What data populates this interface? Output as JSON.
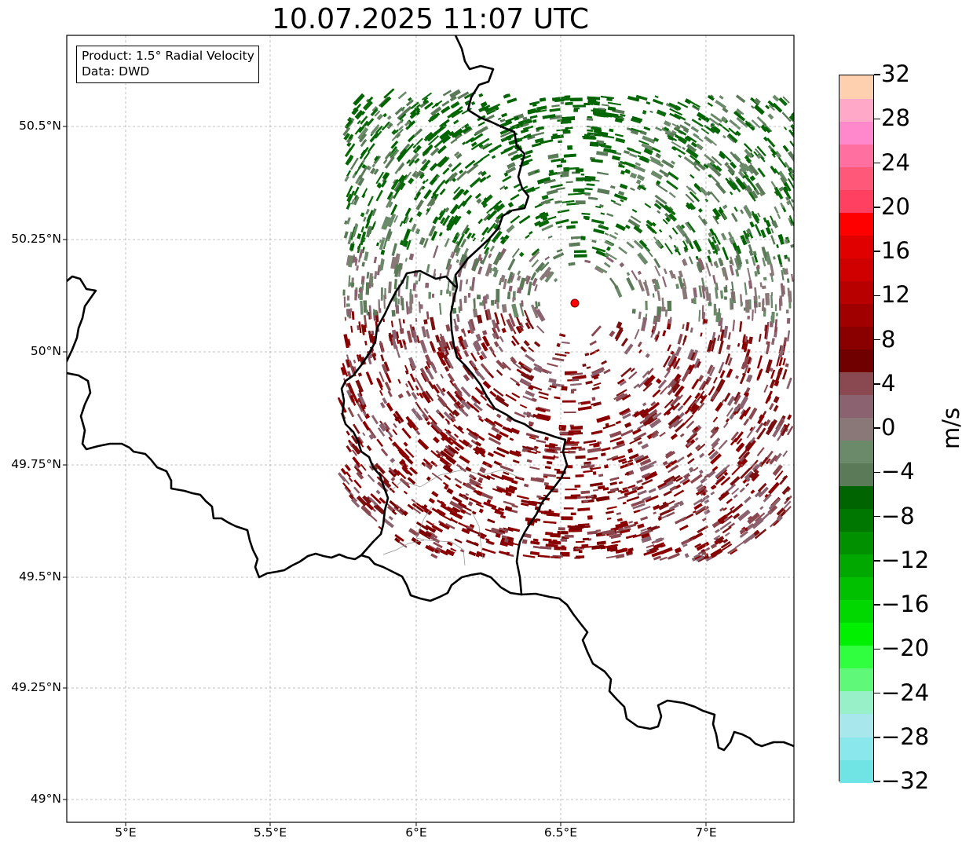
{
  "title": "10.07.2025 11:07 UTC",
  "info": {
    "product": "Product: 1.5° Radial Velocity",
    "source": "Data: DWD"
  },
  "lat_labels": [
    "50.5°N",
    "50.25°N",
    "50°N",
    "49.75°N",
    "49.5°N",
    "49.25°N",
    "49°N"
  ],
  "lon_labels": [
    "5°E",
    "5.5°E",
    "6°E",
    "6.5°E",
    "7°E"
  ],
  "colorbar": {
    "unit": "m/s",
    "tick_labels": [
      "32",
      "28",
      "24",
      "20",
      "16",
      "12",
      "8",
      "4",
      "0",
      "−4",
      "−8",
      "−12",
      "−16",
      "−20",
      "−24",
      "−28",
      "−32"
    ],
    "colors": [
      "#70e4e4",
      "#8ae8ec",
      "#a8e8ec",
      "#98f0c8",
      "#60f878",
      "#30ff40",
      "#00f000",
      "#00d800",
      "#00c000",
      "#00a800",
      "#009000",
      "#007800",
      "#006400",
      "#5a7a58",
      "#6a8a6a",
      "#8a7878",
      "#8a6270",
      "#8a4850",
      "#700000",
      "#8a0000",
      "#a00000",
      "#b80000",
      "#d00000",
      "#e00000",
      "#ff0000",
      "#ff4060",
      "#ff5878",
      "#ff70a0",
      "#ff88cc",
      "#ffa8c8",
      "#ffd0b0"
    ]
  },
  "colors": {
    "approaching": "#006400",
    "receding": "#8a0000",
    "radar_site": "#ff0000"
  },
  "map": {
    "lon_range": [
      4.8,
      7.3
    ],
    "lat_range": [
      48.95,
      50.7
    ],
    "radar_site": {
      "lon": 6.55,
      "lat": 50.11
    },
    "radar_max_range_km": 140
  }
}
